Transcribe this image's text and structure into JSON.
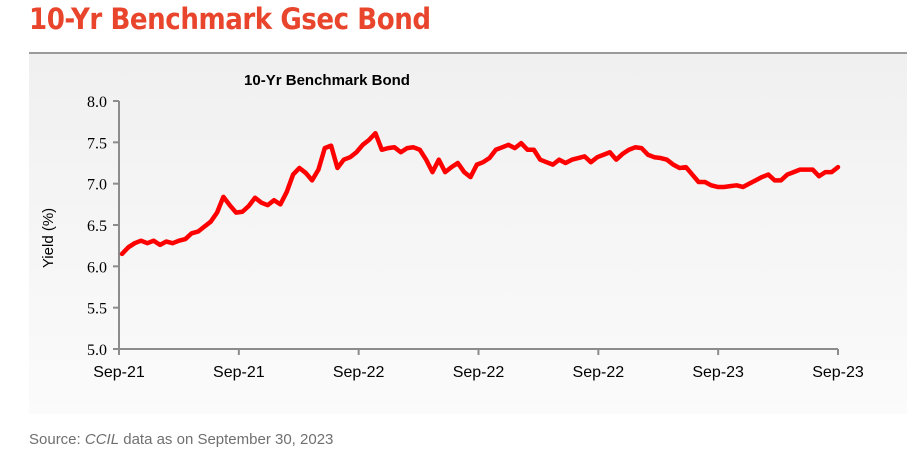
{
  "page_title": "10-Yr Benchmark Gsec Bond",
  "source": {
    "prefix": "Source: ",
    "italic": "CCIL",
    "suffix": " data as on September 30, 2023"
  },
  "colors": {
    "title": "#e8452c",
    "line": "#ff0000",
    "axis": "#8c8c8c"
  },
  "chart_data": {
    "type": "line",
    "title": "10-Yr Benchmark Bond",
    "xlabel": "",
    "ylabel": "Yield (%)",
    "ylim": [
      5.0,
      8.0
    ],
    "yticks": [
      "5.0",
      "5.5",
      "6.0",
      "6.5",
      "7.0",
      "7.5",
      "8.0"
    ],
    "xticks": [
      "Sep-21",
      "Sep-21",
      "Sep-22",
      "Sep-22",
      "Sep-22",
      "Sep-23",
      "Sep-23"
    ],
    "grid": false,
    "series": [
      {
        "values": [
          6.15,
          6.23,
          6.28,
          6.31,
          6.28,
          6.31,
          6.26,
          6.3,
          6.28,
          6.31,
          6.33,
          6.4,
          6.42,
          6.48,
          6.54,
          6.65,
          6.84,
          6.74,
          6.65,
          6.66,
          6.73,
          6.83,
          6.77,
          6.74,
          6.8,
          6.75,
          6.9,
          7.11,
          7.19,
          7.13,
          7.04,
          7.17,
          7.43,
          7.46,
          7.19,
          7.29,
          7.32,
          7.38,
          7.47,
          7.53,
          7.61,
          7.41,
          7.43,
          7.44,
          7.38,
          7.43,
          7.44,
          7.41,
          7.29,
          7.14,
          7.29,
          7.14,
          7.2,
          7.25,
          7.14,
          7.08,
          7.23,
          7.26,
          7.31,
          7.41,
          7.44,
          7.47,
          7.43,
          7.49,
          7.41,
          7.41,
          7.29,
          7.26,
          7.23,
          7.29,
          7.25,
          7.29,
          7.31,
          7.33,
          7.26,
          7.32,
          7.35,
          7.38,
          7.29,
          7.36,
          7.41,
          7.44,
          7.43,
          7.35,
          7.32,
          7.31,
          7.29,
          7.23,
          7.19,
          7.2,
          7.11,
          7.02,
          7.02,
          6.98,
          6.96,
          6.96,
          6.97,
          6.98,
          6.96,
          7.0,
          7.04,
          7.08,
          7.11,
          7.04,
          7.04,
          7.11,
          7.14,
          7.17,
          7.17,
          7.17,
          7.09,
          7.14,
          7.14,
          7.2
        ]
      }
    ]
  }
}
